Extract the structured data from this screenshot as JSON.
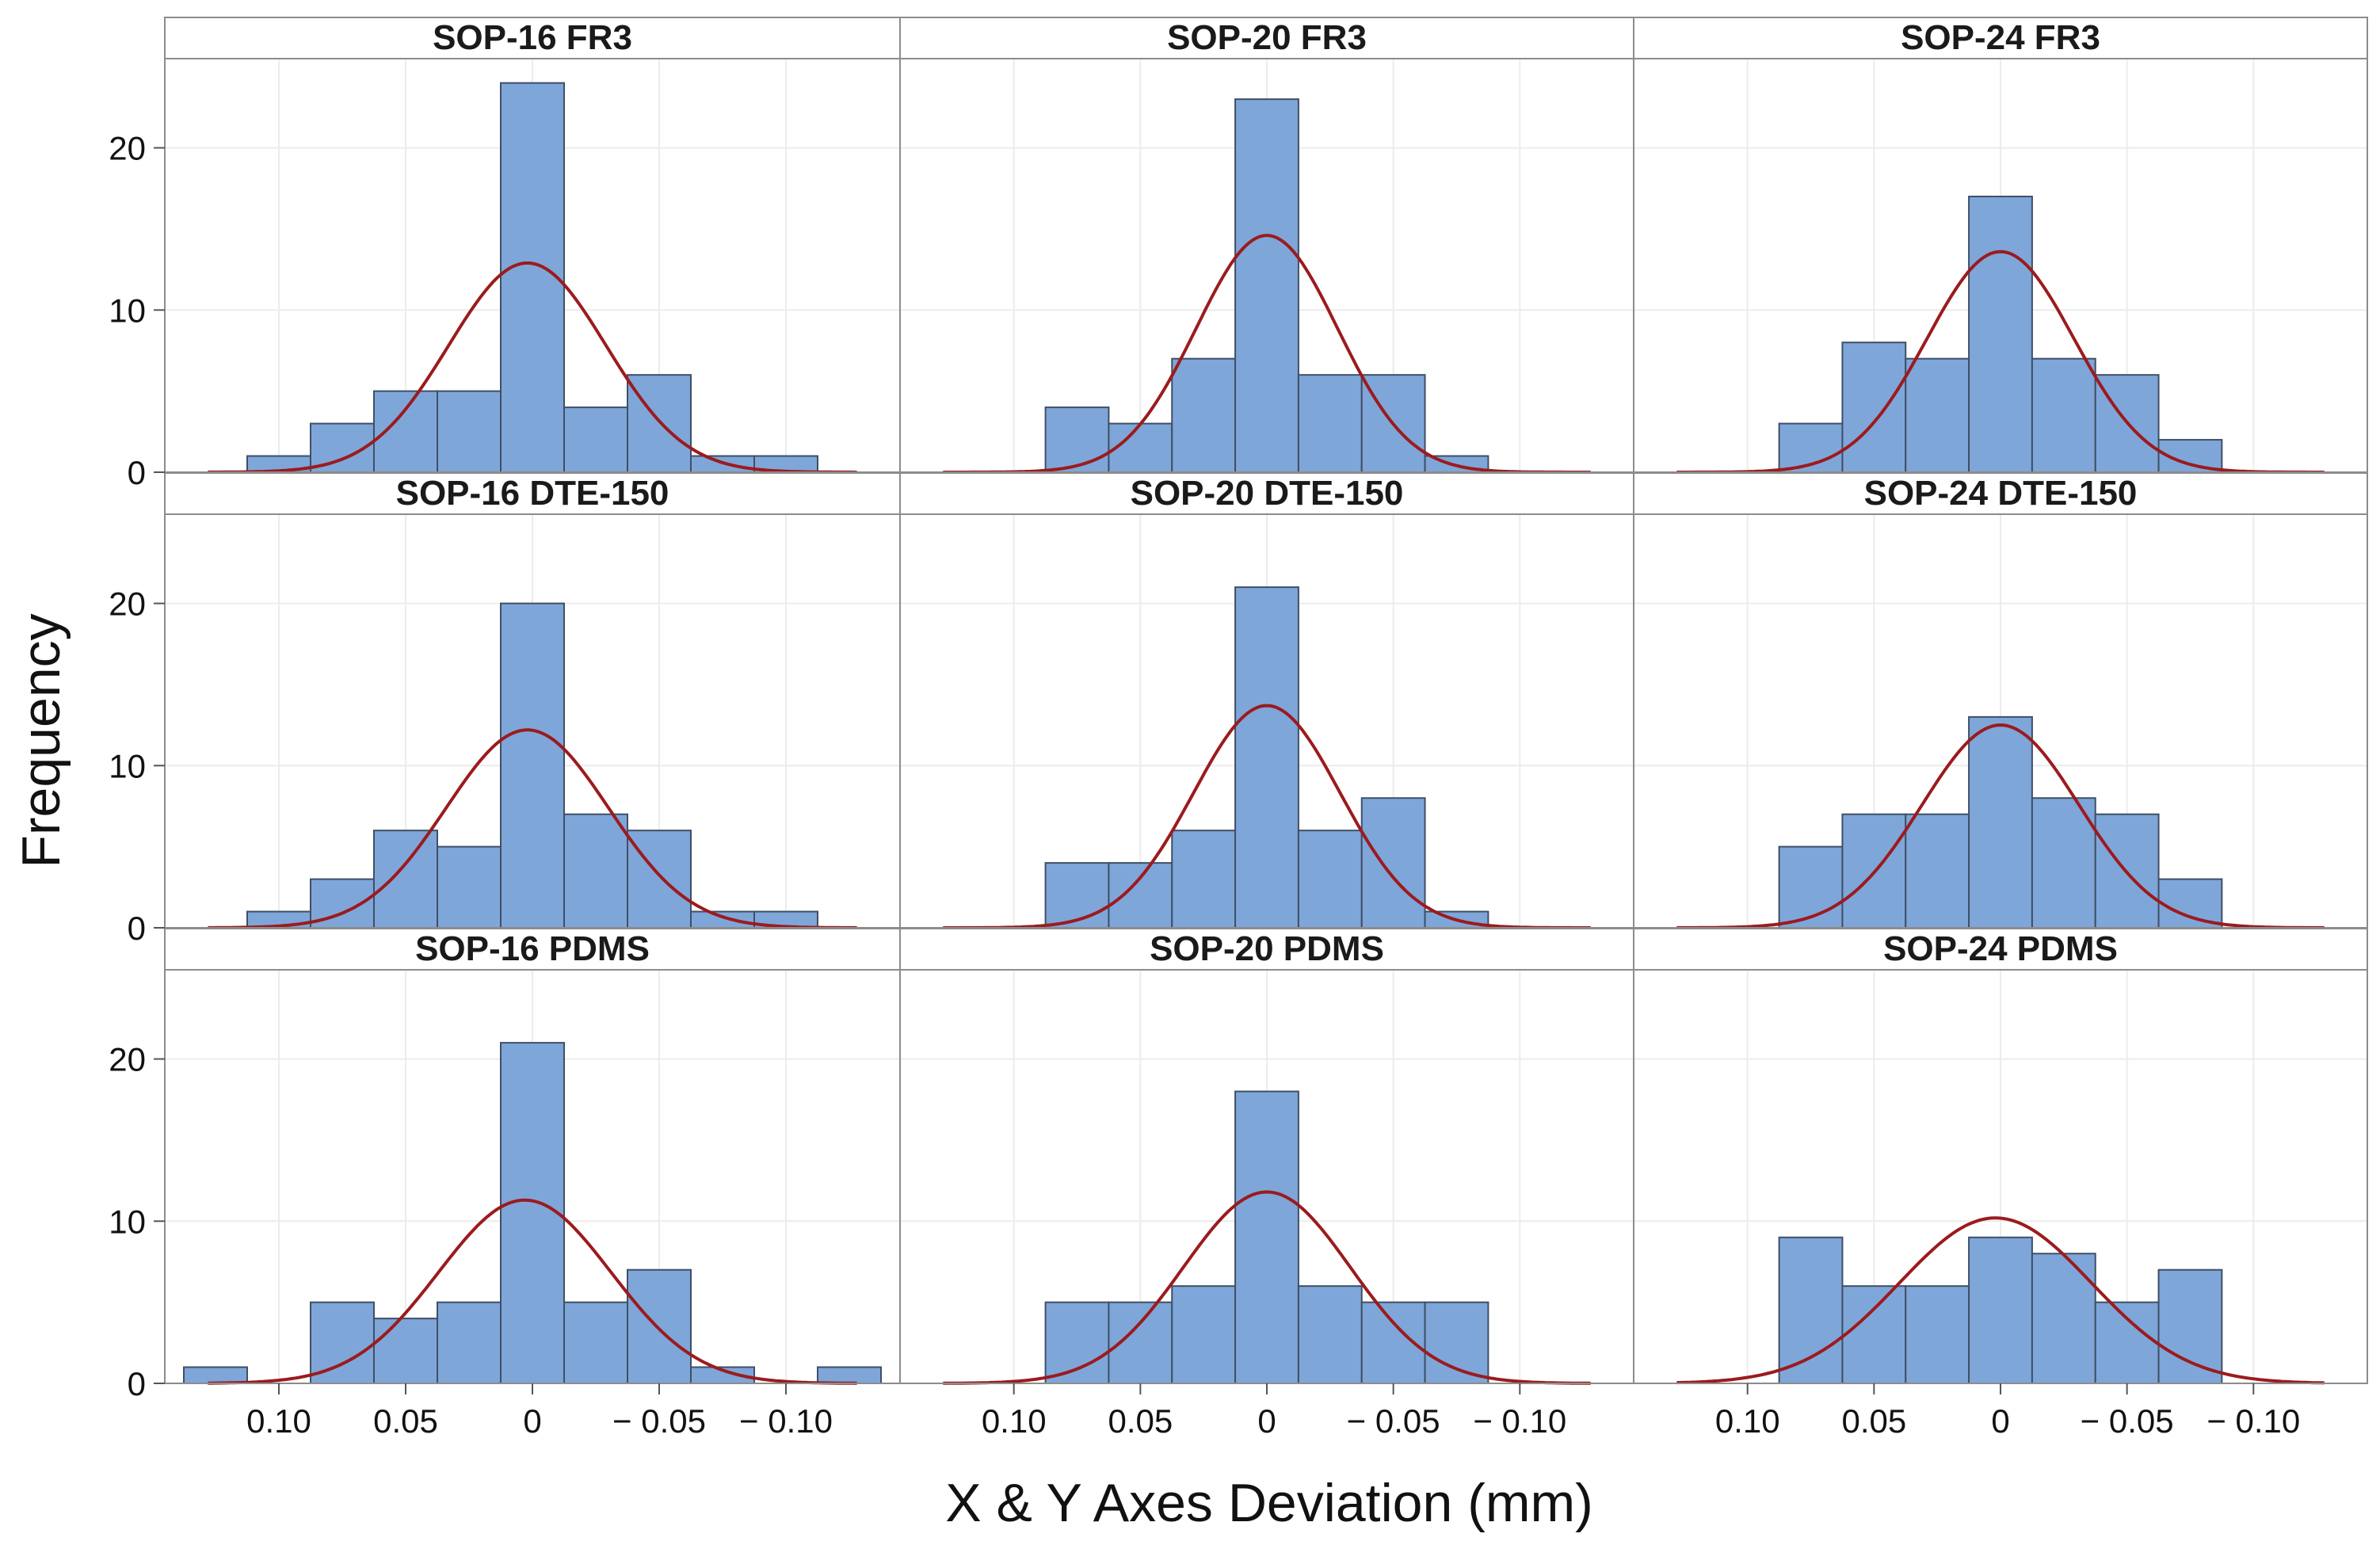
{
  "colors": {
    "bar_fill": "#7fa6d9",
    "bar_stroke": "#3f4f66",
    "curve": "#9b1b1e",
    "grid": "#ececec",
    "frame": "#8c8c8c"
  },
  "chart_data": {
    "type": "bar",
    "subtype": "faceted-histogram-with-normal-fit",
    "xlabel": "X & Y Axes Deviation (mm)",
    "ylabel": "Frequency",
    "x_reversed": true,
    "xlim": [
      0.145,
      -0.145
    ],
    "ylim": [
      0,
      25.5
    ],
    "x_ticks": [
      0.1,
      0.05,
      0,
      -0.05,
      -0.1
    ],
    "x_tick_labels": [
      "0.10",
      "0.05",
      "0",
      "− 0.05",
      "− 0.10"
    ],
    "y_ticks": [
      0,
      10,
      20
    ],
    "y_tick_labels": [
      "0",
      "10",
      "20"
    ],
    "bin_width": 0.025,
    "bin_centers": [
      0.125,
      0.1,
      0.075,
      0.05,
      0.025,
      0,
      -0.025,
      -0.05,
      -0.075,
      -0.1,
      -0.125
    ],
    "fit": "normal",
    "panels": [
      {
        "title": "SOP-16 FR3",
        "frequencies": [
          0,
          1,
          3,
          5,
          5,
          24,
          4,
          6,
          1,
          1,
          0
        ],
        "fit_peak": 12.9,
        "fit_mean": 0.002,
        "fit_sd": 0.031
      },
      {
        "title": "SOP-20 FR3",
        "frequencies": [
          0,
          0,
          4,
          3,
          7,
          23,
          6,
          6,
          1,
          0,
          0
        ],
        "fit_peak": 14.6,
        "fit_mean": 0.0,
        "fit_sd": 0.028
      },
      {
        "title": "SOP-24 FR3",
        "frequencies": [
          0,
          0,
          3,
          8,
          7,
          17,
          7,
          6,
          2,
          0,
          0
        ],
        "fit_peak": 13.6,
        "fit_mean": 0.0,
        "fit_sd": 0.029
      },
      {
        "title": "SOP-16 DTE-150",
        "frequencies": [
          0,
          1,
          3,
          6,
          5,
          20,
          7,
          6,
          1,
          1,
          0
        ],
        "fit_peak": 12.2,
        "fit_mean": 0.002,
        "fit_sd": 0.032
      },
      {
        "title": "SOP-20 DTE-150",
        "frequencies": [
          0,
          0,
          4,
          4,
          6,
          21,
          6,
          8,
          1,
          0,
          0
        ],
        "fit_peak": 13.7,
        "fit_mean": 0.0,
        "fit_sd": 0.029
      },
      {
        "title": "SOP-24 DTE-150",
        "frequencies": [
          0,
          0,
          5,
          7,
          7,
          13,
          8,
          7,
          3,
          0,
          0
        ],
        "fit_peak": 12.5,
        "fit_mean": 0.0,
        "fit_sd": 0.031
      },
      {
        "title": "SOP-16 PDMS",
        "frequencies": [
          1,
          0,
          5,
          4,
          5,
          21,
          5,
          7,
          1,
          0,
          1
        ],
        "fit_peak": 11.3,
        "fit_mean": 0.003,
        "fit_sd": 0.034
      },
      {
        "title": "SOP-20 PDMS",
        "frequencies": [
          0,
          0,
          5,
          5,
          6,
          18,
          6,
          5,
          5,
          0,
          0
        ],
        "fit_peak": 11.8,
        "fit_mean": 0.0,
        "fit_sd": 0.033
      },
      {
        "title": "SOP-24 PDMS",
        "frequencies": [
          0,
          0,
          9,
          6,
          6,
          9,
          8,
          5,
          7,
          0,
          0
        ],
        "fit_peak": 10.2,
        "fit_mean": 0.002,
        "fit_sd": 0.038
      }
    ]
  }
}
